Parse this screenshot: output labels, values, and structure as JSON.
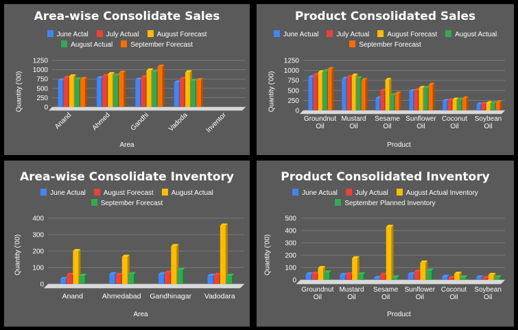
{
  "colors": {
    "blue": "#4285f4",
    "red": "#ea4335",
    "yellow": "#fbbc04",
    "green": "#34a853",
    "orange": "#ff6d01",
    "panel": "#5a5a5a",
    "grid": "#7a7a7a",
    "text": "#ffffff"
  },
  "chart_data": [
    {
      "type": "bar",
      "title": "Area-wise Consolidate Sales",
      "xlabel": "Area",
      "ylabel": "Quantity ('00)",
      "ylim": [
        0,
        1250
      ],
      "yticks": [
        0,
        250,
        500,
        750,
        1000,
        1250
      ],
      "grid": true,
      "style": "3d",
      "tick_rotation": -45,
      "categories": [
        "Anand",
        "Ahmed",
        "Gandhi",
        "Vadoda",
        "Inventor"
      ],
      "series": [
        {
          "name": "June Actal",
          "color": "#4285f4",
          "values": [
            710,
            770,
            730,
            660,
            null
          ]
        },
        {
          "name": "July Actual",
          "color": "#ea4335",
          "values": [
            780,
            830,
            800,
            750,
            null
          ]
        },
        {
          "name": "August Forecast",
          "color": "#fbbc04",
          "values": [
            820,
            880,
            980,
            930,
            null
          ]
        },
        {
          "name": "August Actual",
          "color": "#34a853",
          "values": [
            740,
            840,
            940,
            700,
            null
          ]
        },
        {
          "name": "September Forecast",
          "color": "#ff6d01",
          "values": [
            750,
            920,
            1080,
            720,
            null
          ]
        }
      ]
    },
    {
      "type": "bar",
      "title": "Product Consolidated Sales",
      "xlabel": "Product",
      "ylabel": "Quantity ('00)",
      "ylim": [
        0,
        1250
      ],
      "yticks": [
        0,
        250,
        500,
        750,
        1000,
        1250
      ],
      "grid": true,
      "style": "3d",
      "tick_rotation": 0,
      "categories": [
        "Groundnut Oil",
        "Mustard Oil",
        "Sesame Oil",
        "Sunflower Oil",
        "Coconut Oil",
        "Soybean Oil"
      ],
      "series": [
        {
          "name": "June Actual",
          "color": "#4285f4",
          "values": [
            830,
            790,
            300,
            480,
            240,
            150
          ]
        },
        {
          "name": "July Actual",
          "color": "#ea4335",
          "values": [
            880,
            830,
            490,
            500,
            250,
            160
          ]
        },
        {
          "name": "August Forecast",
          "color": "#fbbc04",
          "values": [
            950,
            870,
            760,
            560,
            270,
            180
          ]
        },
        {
          "name": "August Actual",
          "color": "#34a853",
          "values": [
            980,
            800,
            380,
            560,
            270,
            180
          ]
        },
        {
          "name": "September Forecast",
          "color": "#ff6d01",
          "values": [
            1030,
            760,
            420,
            640,
            300,
            200
          ]
        }
      ]
    },
    {
      "type": "bar",
      "title": "Area-wise Consolidate Inventory",
      "xlabel": "Area",
      "ylabel": "Quantity ('00)",
      "ylim": [
        0,
        400
      ],
      "yticks": [
        0,
        100,
        200,
        300,
        400
      ],
      "grid": true,
      "style": "3d",
      "tick_rotation": 0,
      "categories": [
        "Anand",
        "Ahmedabad",
        "Gandhinagar",
        "Vadodara"
      ],
      "series": [
        {
          "name": "June Actual",
          "color": "#4285f4",
          "values": [
            30,
            60,
            60,
            50
          ]
        },
        {
          "name": "August Forecast",
          "color": "#ea4335",
          "values": [
            55,
            55,
            70,
            55
          ]
        },
        {
          "name": "August Actual",
          "color": "#fbbc04",
          "values": [
            200,
            165,
            230,
            355
          ]
        },
        {
          "name": "September Forecast",
          "color": "#34a853",
          "values": [
            50,
            60,
            85,
            50
          ]
        }
      ]
    },
    {
      "type": "bar",
      "title": "Product Consolidated Inventory",
      "xlabel": "Product",
      "ylabel": "Quantity ('00)",
      "ylim": [
        0,
        500
      ],
      "yticks": [
        0,
        100,
        200,
        300,
        400,
        500
      ],
      "grid": true,
      "style": "3d",
      "tick_rotation": 0,
      "categories": [
        "Groundnut Oil",
        "Mustard Oil",
        "Sesame Oil",
        "Sunflower Oil",
        "Coconut Oil",
        "Soybean Oil"
      ],
      "series": [
        {
          "name": "June Actual",
          "color": "#4285f4",
          "values": [
            45,
            40,
            15,
            45,
            25,
            20
          ]
        },
        {
          "name": "July Actual",
          "color": "#ea4335",
          "values": [
            50,
            45,
            40,
            65,
            15,
            15
          ]
        },
        {
          "name": "August Actual Inventory",
          "color": "#fbbc04",
          "values": [
            95,
            175,
            430,
            140,
            50,
            40
          ]
        },
        {
          "name": "September Planned Inventory",
          "color": "#34a853",
          "values": [
            60,
            45,
            20,
            75,
            20,
            20
          ]
        }
      ]
    }
  ]
}
